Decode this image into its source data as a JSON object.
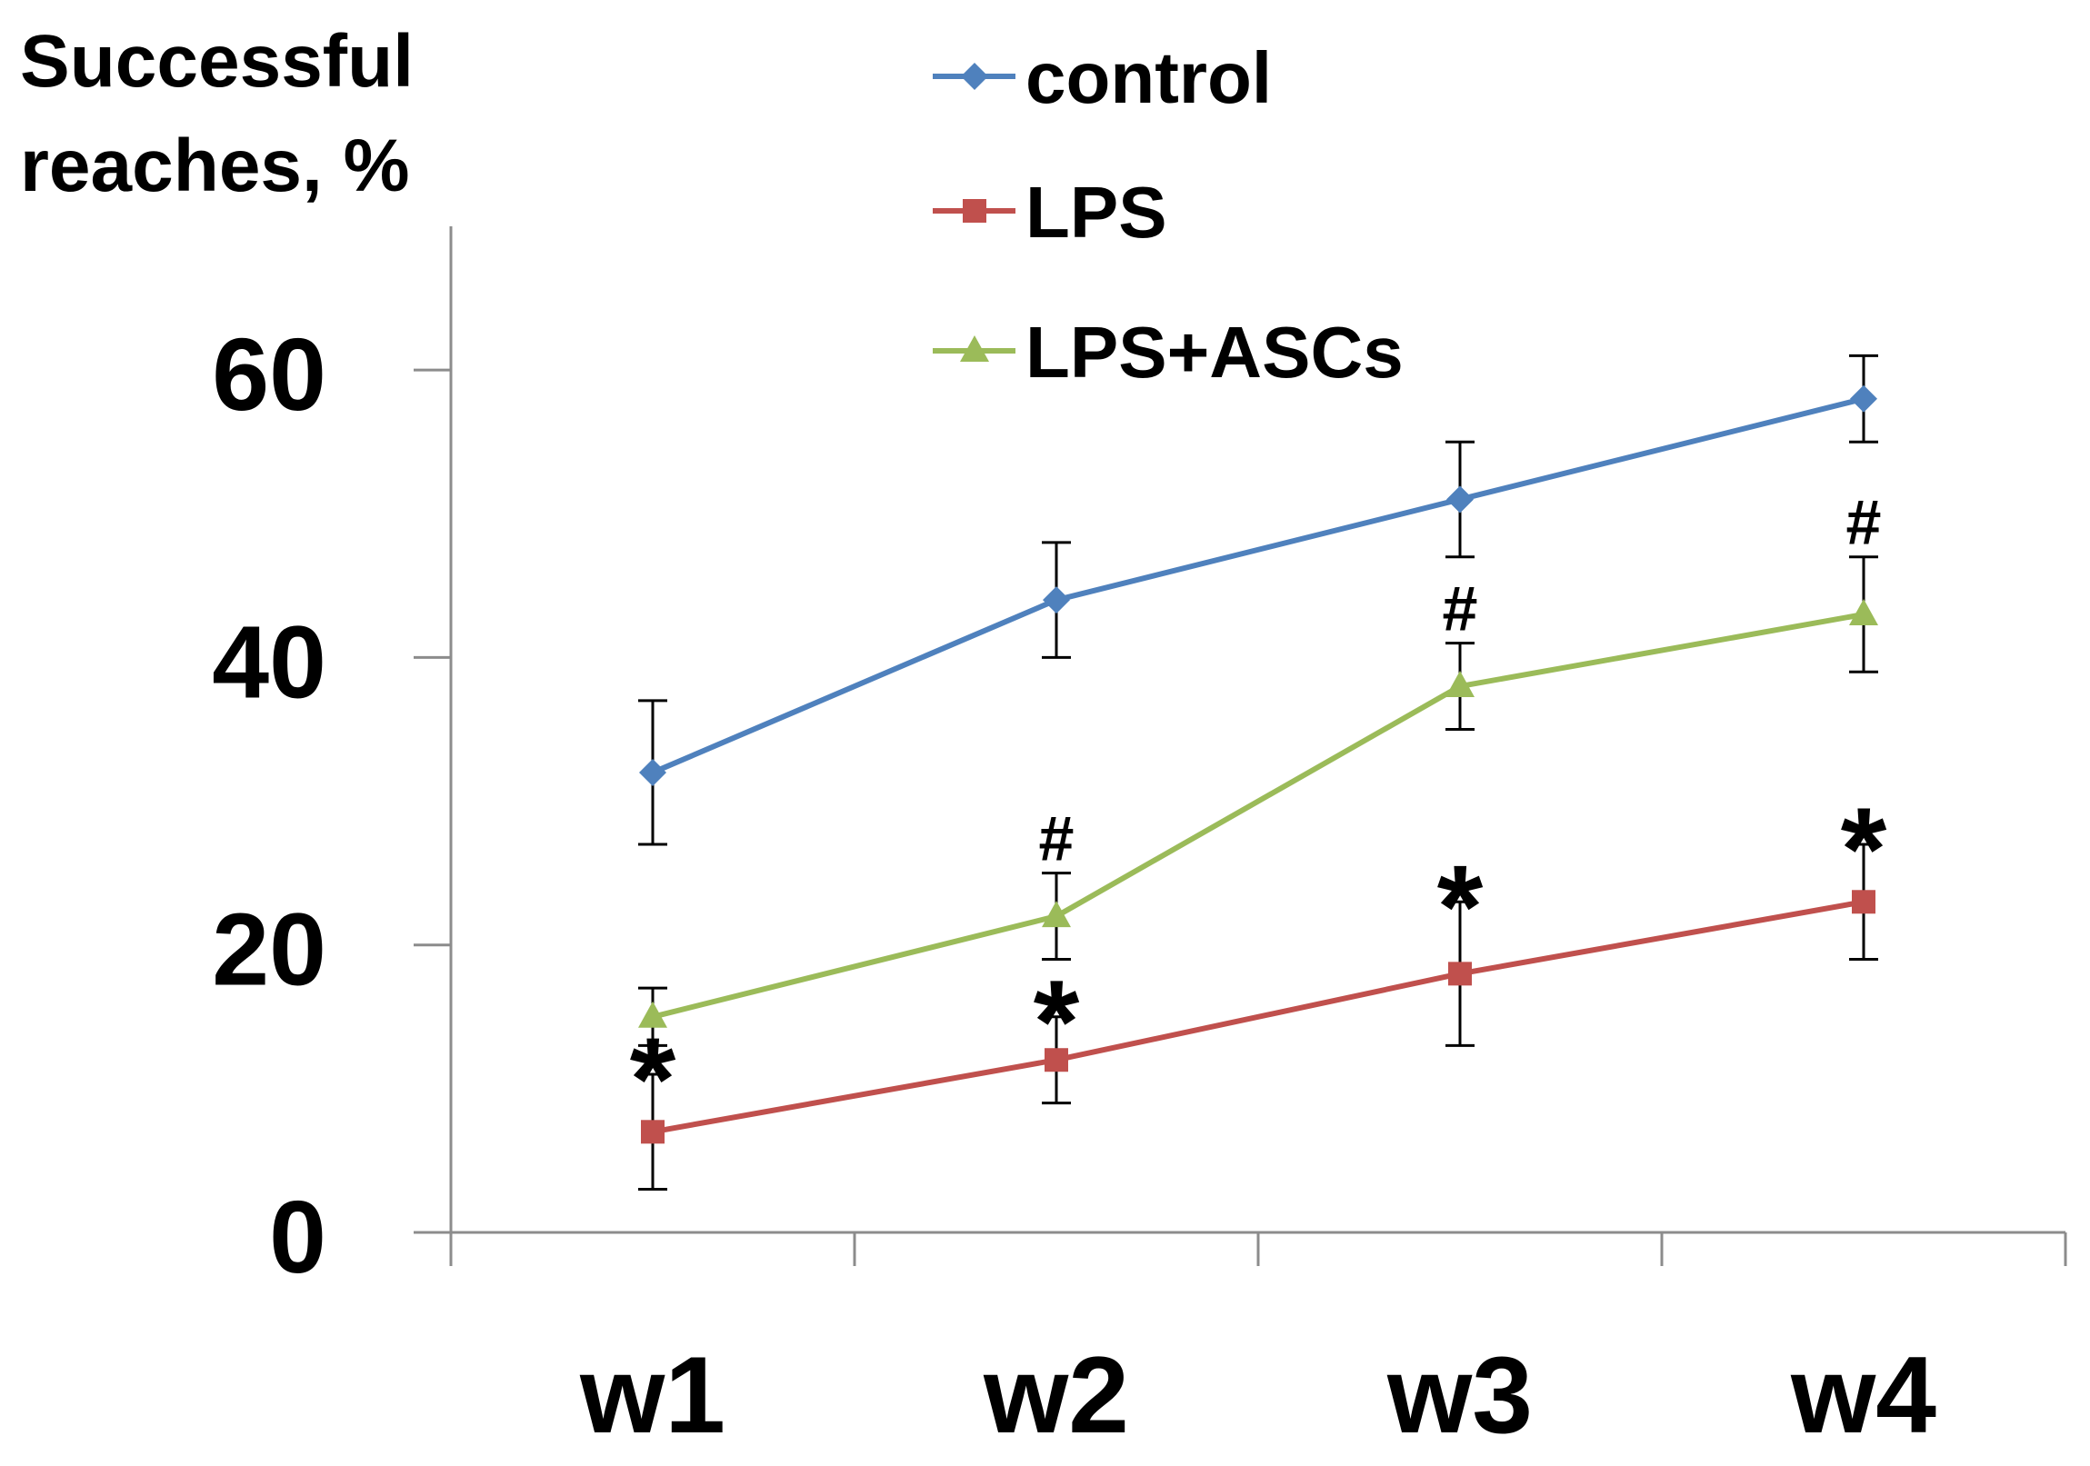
{
  "chart_data": {
    "type": "line",
    "title": "",
    "xlabel": "",
    "ylabel_lines": [
      "Successful",
      "reaches, %"
    ],
    "categories": [
      "w1",
      "w2",
      "w3",
      "w4"
    ],
    "ylim": [
      0,
      70
    ],
    "yticks": [
      0,
      20,
      40,
      60
    ],
    "grid": false,
    "legend_position": "top-center",
    "axis_color": "#8c8c8c",
    "error_bar_color": "#000000",
    "series": [
      {
        "name": "control",
        "color": "#4f81bd",
        "marker": "diamond",
        "values": [
          32,
          44,
          51,
          58
        ],
        "error": [
          5,
          4,
          4,
          3
        ]
      },
      {
        "name": "LPS",
        "color": "#c0504d",
        "marker": "square",
        "values": [
          7,
          12,
          18,
          23
        ],
        "error": [
          4,
          3,
          5,
          4
        ]
      },
      {
        "name": "LPS+ASCs",
        "color": "#9bbb59",
        "marker": "triangle",
        "values": [
          15,
          22,
          38,
          43
        ],
        "error": [
          2,
          3,
          3,
          4
        ]
      }
    ],
    "annotations": [
      {
        "series_index": 1,
        "category_index": 0,
        "text": "*"
      },
      {
        "series_index": 1,
        "category_index": 1,
        "text": "*"
      },
      {
        "series_index": 1,
        "category_index": 2,
        "text": "*"
      },
      {
        "series_index": 1,
        "category_index": 3,
        "text": "*"
      },
      {
        "series_index": 2,
        "category_index": 1,
        "text": "#"
      },
      {
        "series_index": 2,
        "category_index": 2,
        "text": "#"
      },
      {
        "series_index": 2,
        "category_index": 3,
        "text": "#"
      }
    ]
  }
}
